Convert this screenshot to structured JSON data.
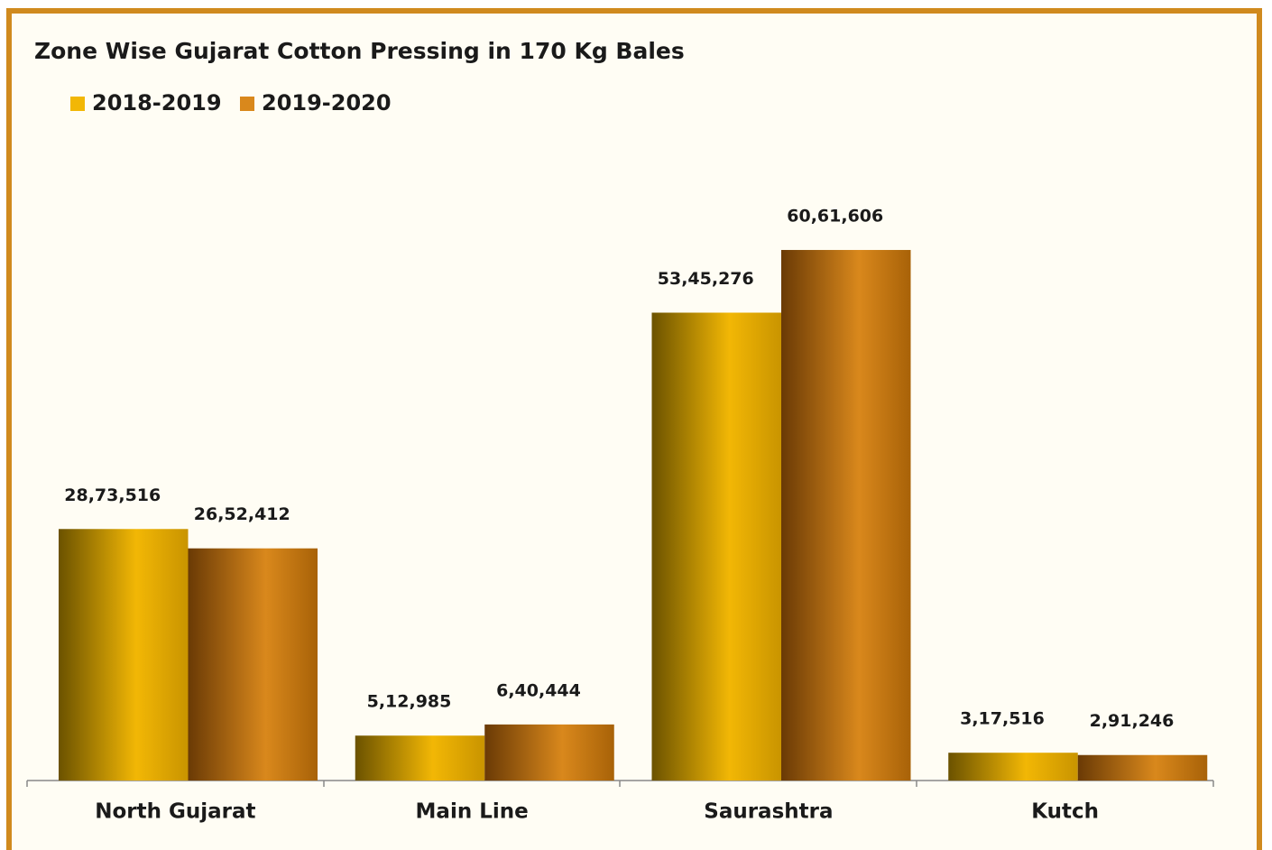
{
  "chart_data": {
    "type": "bar",
    "title": "Zone Wise Gujarat Cotton Pressing in 170 Kg Bales",
    "categories": [
      "North Gujarat",
      "Main Line",
      "Saurashtra",
      "Kutch"
    ],
    "series": [
      {
        "name": "2018-2019",
        "color": "#f2b705",
        "values": [
          2873516,
          512985,
          5345276,
          317516
        ],
        "value_labels": [
          "28,73,516",
          "5,12,985",
          "53,45,276",
          "3,17,516"
        ]
      },
      {
        "name": "2019-2020",
        "color": "#d9881c",
        "values": [
          2652412,
          640444,
          6061606,
          291246
        ],
        "value_labels": [
          "26,52,412",
          "6,40,444",
          "60,61,606",
          "2,91,246"
        ]
      }
    ],
    "ylim": [
      0,
      7000000
    ],
    "legend": "top-left"
  }
}
